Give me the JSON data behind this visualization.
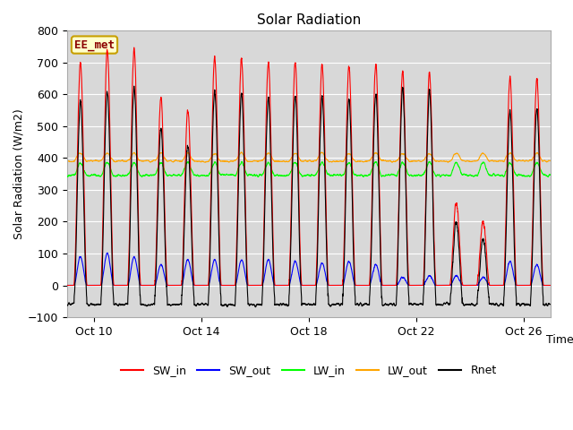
{
  "title": "Solar Radiation",
  "xlabel": "Time",
  "ylabel": "Solar Radiation (W/m2)",
  "ylim": [
    -100,
    800
  ],
  "yticks": [
    -100,
    0,
    100,
    200,
    300,
    400,
    500,
    600,
    700,
    800
  ],
  "fig_bg_color": "#ffffff",
  "plot_bg_color": "#d8d8d8",
  "station_label": "EE_met",
  "station_label_color": "#8b0000",
  "station_box_color": "#ffffcc",
  "station_box_edge": "#c8a000",
  "colors": {
    "SW_in": "#ff0000",
    "SW_out": "#0000ff",
    "LW_in": "#00ff00",
    "LW_out": "#ffa500",
    "Rnet": "#000000"
  },
  "xtick_labels": [
    "Oct 10",
    "Oct 14",
    "Oct 18",
    "Oct 22",
    "Oct 26"
  ],
  "xtick_positions": [
    1,
    5,
    9,
    13,
    17
  ],
  "n_days": 18,
  "peaks_SW_in": [
    700,
    740,
    740,
    590,
    550,
    720,
    710,
    700,
    700,
    695,
    690,
    695,
    670,
    665,
    260,
    200,
    650,
    650
  ],
  "peaks_SW_out": [
    90,
    100,
    90,
    65,
    80,
    80,
    80,
    80,
    75,
    70,
    75,
    65,
    25,
    30,
    30,
    25,
    75,
    65
  ],
  "LW_in_base": 345,
  "LW_out_base": 390,
  "Rnet_night": -60,
  "grid_color": "#ffffff",
  "figsize": [
    6.4,
    4.8
  ],
  "dpi": 100,
  "title_fontsize": 11,
  "label_fontsize": 9,
  "tick_fontsize": 9,
  "legend_fontsize": 9,
  "linewidth": 0.8
}
